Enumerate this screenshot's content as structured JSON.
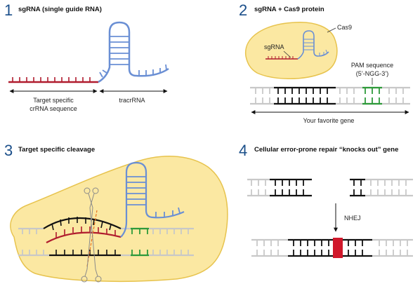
{
  "panels": [
    {
      "number": "1",
      "heading": "sgRNA (single guide RNA)"
    },
    {
      "number": "2",
      "heading": "sgRNA + Cas9 protein"
    },
    {
      "number": "3",
      "heading": "Target specific cleavage"
    },
    {
      "number": "4",
      "heading": "Cellular error-prone repair “knocks out” gene"
    }
  ],
  "labels": {
    "target_line1": "Target specific",
    "target_line2": "crRNA sequence",
    "tracrrna": "tracrRNA",
    "cas9": "Cas9",
    "sgrna": "sgRNA",
    "pam_line1": "PAM sequence",
    "pam_line2": "(5’-NGG-3’)",
    "gene": "Your favorite gene",
    "nhej": "NHEJ"
  },
  "colors": {
    "crrna": "#b01c2e",
    "tracrrna": "#6a8fd4",
    "dna": "#c8c8c8",
    "target_dna": "#111111",
    "pam": "#2e9a3a",
    "protein_fill": "#fbe8a2",
    "protein_stroke": "#e7c34d",
    "number": "#1b4f8a",
    "repair": "#d0182b"
  }
}
